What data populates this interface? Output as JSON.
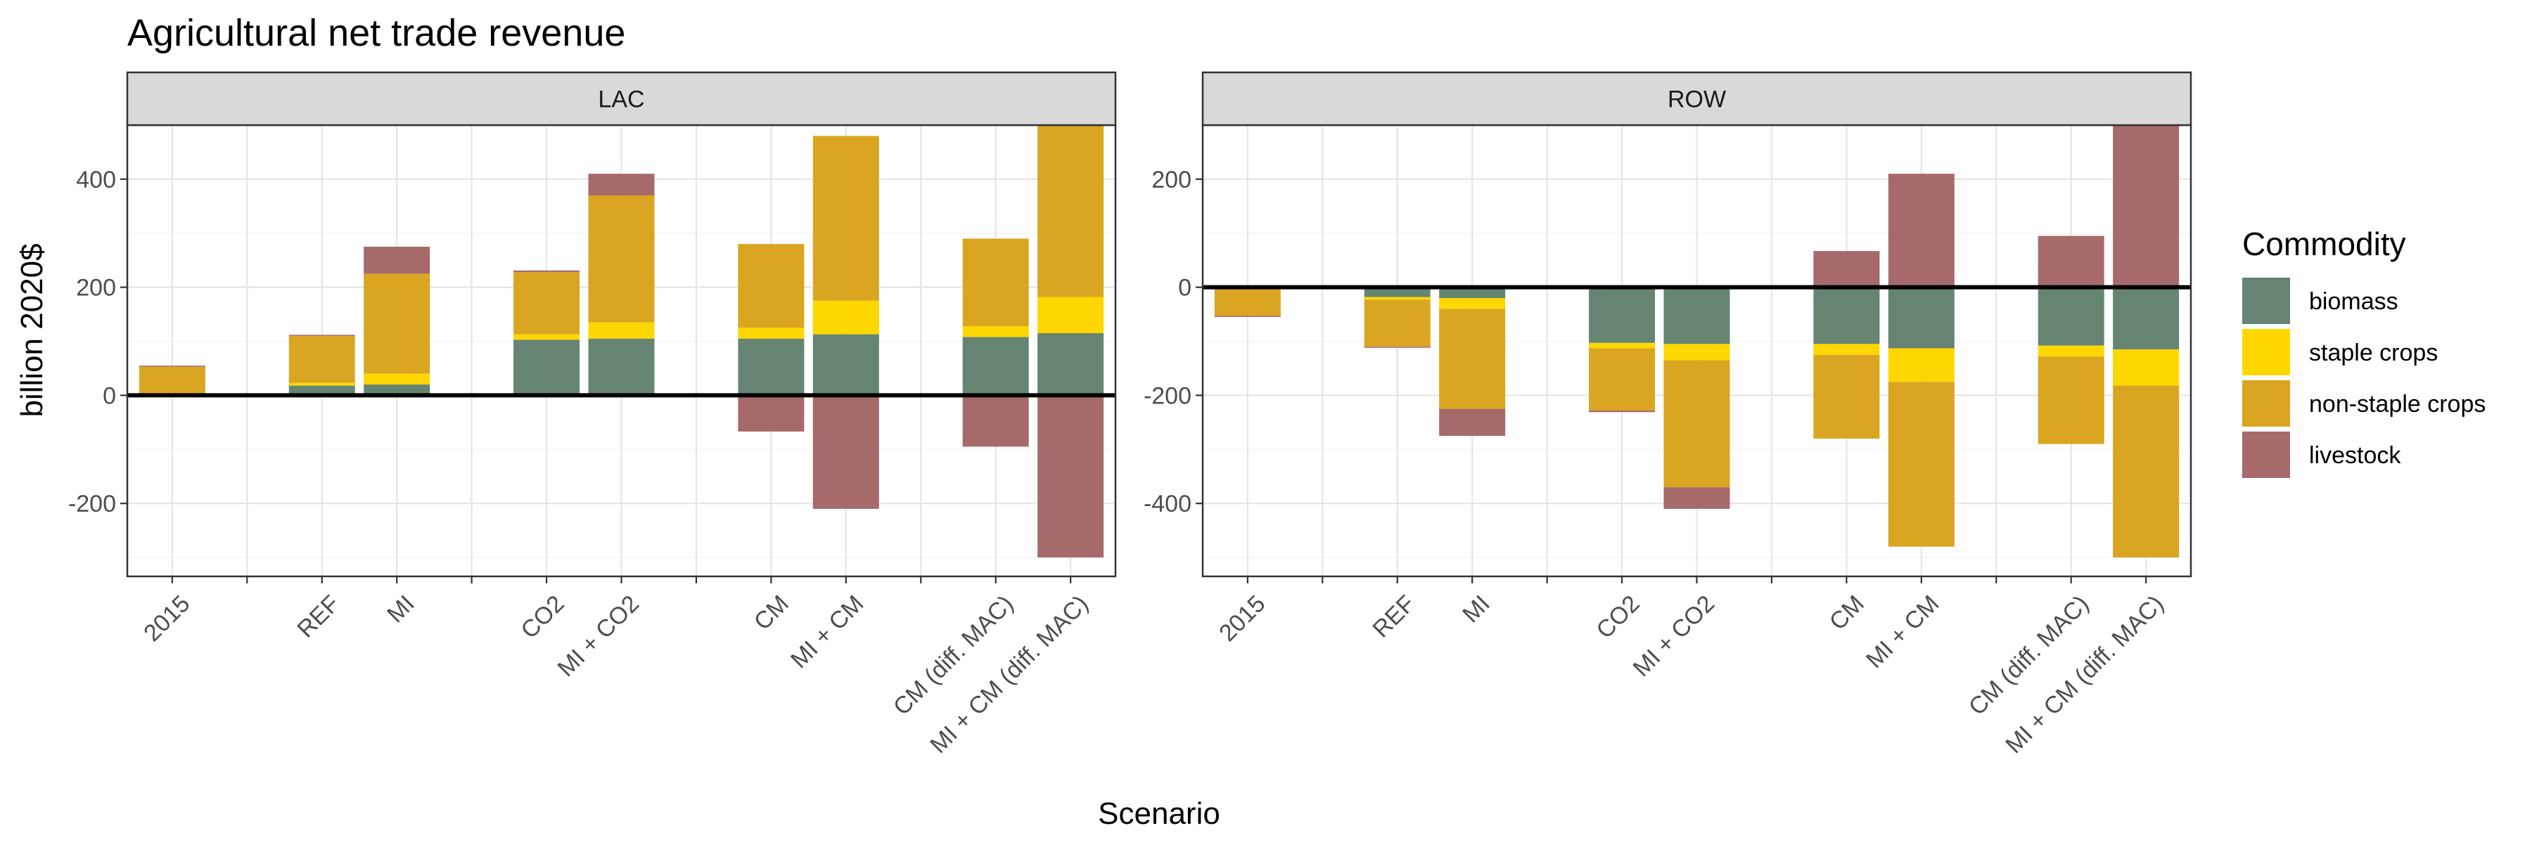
{
  "chart_data": {
    "type": "bar",
    "stacked": true,
    "title": "Agricultural net trade revenue",
    "xlabel": "Scenario",
    "ylabel": "billion 2020$",
    "categories": [
      "2015",
      "",
      "REF",
      "MI",
      "",
      "CO2",
      "MI + CO2",
      "",
      "CM",
      "MI + CM",
      "",
      "CM (diff. MAC)",
      "MI + CM (diff. MAC)"
    ],
    "legend": {
      "title": "Commodity",
      "position": "right",
      "entries": [
        {
          "name": "biomass",
          "color": "#658572"
        },
        {
          "name": "staple crops",
          "color": "#ffd700"
        },
        {
          "name": "non-staple crops",
          "color": "#daa520"
        },
        {
          "name": "livestock",
          "color": "#a76a6a"
        }
      ]
    },
    "grid": true,
    "facets": [
      {
        "name": "LAC",
        "ylim": [
          -335,
          500
        ],
        "yticks": [
          -200,
          0,
          200,
          400
        ],
        "series": [
          {
            "name": "biomass",
            "values": [
              0,
              null,
              18,
              20,
              null,
              103,
              105,
              null,
              105,
              113,
              null,
              108,
              115
            ]
          },
          {
            "name": "staple crops",
            "values": [
              3,
              null,
              5,
              20,
              null,
              10,
              30,
              null,
              20,
              62,
              null,
              20,
              67
            ]
          },
          {
            "name": "non-staple crops",
            "values": [
              50,
              null,
              87,
              185,
              null,
              115,
              235,
              null,
              155,
              305,
              null,
              162,
              318
            ]
          },
          {
            "name": "livestock",
            "values": [
              2,
              null,
              2,
              50,
              null,
              3,
              40,
              null,
              -67,
              -210,
              null,
              -95,
              -300
            ]
          }
        ]
      },
      {
        "name": "ROW",
        "ylim": [
          -535,
          300
        ],
        "yticks": [
          -400,
          -200,
          0,
          200
        ],
        "series": [
          {
            "name": "biomass",
            "values": [
              0,
              null,
              -18,
              -20,
              null,
              -103,
              -105,
              null,
              -105,
              -113,
              null,
              -108,
              -115
            ]
          },
          {
            "name": "staple crops",
            "values": [
              -3,
              null,
              -5,
              -20,
              null,
              -10,
              -30,
              null,
              -20,
              -62,
              null,
              -20,
              -67
            ]
          },
          {
            "name": "non-staple crops",
            "values": [
              -50,
              null,
              -87,
              -185,
              null,
              -115,
              -235,
              null,
              -155,
              -305,
              null,
              -162,
              -318
            ]
          },
          {
            "name": "livestock",
            "values": [
              -2,
              null,
              -2,
              -50,
              null,
              -3,
              -40,
              null,
              67,
              210,
              null,
              95,
              300
            ]
          }
        ]
      }
    ]
  }
}
